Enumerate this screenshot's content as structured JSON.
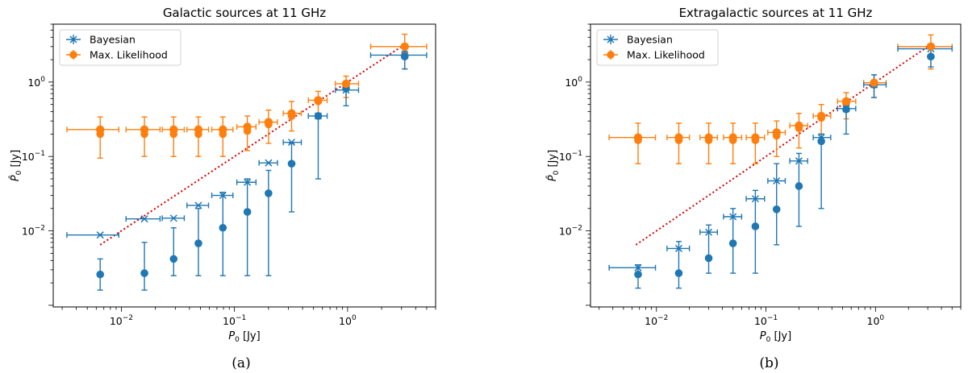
{
  "chart_data": [
    {
      "type": "scatter",
      "title": "Galactic sources at 11 GHz",
      "xlabel": "P0 [Jy]",
      "ylabel": "P̂0 [Jy]",
      "xscale": "log",
      "yscale": "log",
      "xlim": [
        0.0025,
        6
      ],
      "ylim": [
        0.00095,
        6
      ],
      "x_ticks": [
        {
          "value": 0.01,
          "base": "10",
          "exp": "−2"
        },
        {
          "value": 0.1,
          "base": "10",
          "exp": "−1"
        },
        {
          "value": 1,
          "base": "10",
          "exp": "0"
        }
      ],
      "y_ticks": [
        {
          "value": 0.01,
          "base": "10",
          "exp": "−2"
        },
        {
          "value": 0.1,
          "base": "10",
          "exp": "−1"
        },
        {
          "value": 1,
          "base": "10",
          "exp": "0"
        }
      ],
      "legend": {
        "position": "top-left",
        "entries": [
          "Bayesian",
          "Max. Likelihood"
        ]
      },
      "caption": "(a)",
      "reference_line": {
        "label": "identity",
        "x": [
          0.0065,
          3.2
        ],
        "y": [
          0.0065,
          3.2
        ],
        "color": "#dd0000"
      },
      "series": [
        {
          "name": "Bayesian",
          "marker": "x",
          "color": "#1f77b4",
          "x": [
            0.0065,
            0.016,
            0.029,
            0.048,
            0.079,
            0.13,
            0.2,
            0.32,
            0.55,
            0.97,
            3.2
          ],
          "y": [
            0.0088,
            0.0145,
            0.0148,
            0.022,
            0.03,
            0.045,
            0.082,
            0.155,
            0.35,
            0.78,
            2.3
          ],
          "xerr_low": [
            0.0033,
            0.011,
            0.023,
            0.038,
            0.063,
            0.105,
            0.165,
            0.27,
            0.45,
            0.78,
            1.6
          ],
          "xerr_high": [
            0.0095,
            0.022,
            0.036,
            0.059,
            0.097,
            0.155,
            0.24,
            0.39,
            0.66,
            1.25,
            5.0
          ]
        },
        {
          "name": "Bayesian (filled)",
          "marker": "o",
          "color": "#1f77b4",
          "x": [
            0.0065,
            0.016,
            0.029,
            0.048,
            0.079,
            0.13,
            0.2,
            0.32,
            0.55,
            0.97,
            3.2
          ],
          "y": [
            0.0026,
            0.0027,
            0.0042,
            0.0068,
            0.011,
            0.018,
            0.032,
            0.08,
            0.35,
            0.82,
            2.2
          ],
          "yerr_low": [
            0.0016,
            0.0016,
            0.0025,
            0.0025,
            0.0025,
            0.0025,
            0.0025,
            0.018,
            0.05,
            0.48,
            1.5
          ],
          "yerr_high": [
            0.0042,
            0.007,
            0.011,
            0.02,
            0.033,
            0.05,
            0.065,
            0.15,
            0.35,
            0.95,
            2.6
          ]
        },
        {
          "name": "Max. Likelihood",
          "marker": "o",
          "color": "#ff7f0e",
          "x": [
            0.0065,
            0.016,
            0.029,
            0.048,
            0.079,
            0.13,
            0.2,
            0.32,
            0.55,
            0.97,
            3.2
          ],
          "y": [
            0.23,
            0.23,
            0.23,
            0.23,
            0.23,
            0.25,
            0.29,
            0.38,
            0.57,
            0.95,
            3.0
          ],
          "y_secondary": [
            0.2,
            0.2,
            0.2,
            0.2,
            0.2,
            0.22,
            0.27,
            0.35,
            0.55,
            0.92,
            2.3
          ],
          "xerr_low": [
            0.0033,
            0.011,
            0.023,
            0.038,
            0.063,
            0.105,
            0.165,
            0.27,
            0.45,
            0.78,
            1.6
          ],
          "xerr_high": [
            0.0095,
            0.022,
            0.036,
            0.059,
            0.097,
            0.155,
            0.24,
            0.39,
            0.66,
            1.25,
            5.0
          ],
          "yerr_low": [
            0.095,
            0.1,
            0.1,
            0.1,
            0.1,
            0.12,
            0.15,
            0.22,
            0.35,
            0.62,
            1.5
          ],
          "yerr_high": [
            0.34,
            0.34,
            0.34,
            0.34,
            0.34,
            0.35,
            0.42,
            0.55,
            0.75,
            1.2,
            4.4
          ]
        }
      ]
    },
    {
      "type": "scatter",
      "title": "Extragalactic sources at 11 GHz",
      "xlabel": "P0 [Jy]",
      "ylabel": "P̂0 [Jy]",
      "xscale": "log",
      "yscale": "log",
      "xlim": [
        0.0025,
        6
      ],
      "ylim": [
        0.00095,
        6
      ],
      "x_ticks": [
        {
          "value": 0.01,
          "base": "10",
          "exp": "−2"
        },
        {
          "value": 0.1,
          "base": "10",
          "exp": "−1"
        },
        {
          "value": 1,
          "base": "10",
          "exp": "0"
        }
      ],
      "y_ticks": [
        {
          "value": 0.01,
          "base": "10",
          "exp": "−2"
        },
        {
          "value": 0.1,
          "base": "10",
          "exp": "−1"
        },
        {
          "value": 1,
          "base": "10",
          "exp": "0"
        }
      ],
      "legend": {
        "position": "top-left",
        "entries": [
          "Bayesian",
          "Max. Likelihood"
        ]
      },
      "caption": "(b)",
      "reference_line": {
        "label": "identity",
        "x": [
          0.0065,
          3.2
        ],
        "y": [
          0.0065,
          3.2
        ],
        "color": "#dd0000"
      },
      "series": [
        {
          "name": "Bayesian",
          "marker": "x",
          "color": "#1f77b4",
          "x": [
            0.0068,
            0.016,
            0.03,
            0.05,
            0.08,
            0.125,
            0.2,
            0.32,
            0.54,
            0.97,
            3.2
          ],
          "y": [
            0.0032,
            0.0058,
            0.0096,
            0.0155,
            0.027,
            0.047,
            0.087,
            0.18,
            0.44,
            0.92,
            2.8
          ],
          "xerr_low": [
            0.0037,
            0.0125,
            0.025,
            0.041,
            0.066,
            0.104,
            0.165,
            0.27,
            0.45,
            0.78,
            1.6
          ],
          "xerr_high": [
            0.0098,
            0.02,
            0.036,
            0.06,
            0.097,
            0.15,
            0.24,
            0.39,
            0.66,
            1.25,
            5.0
          ]
        },
        {
          "name": "Bayesian (filled)",
          "marker": "o",
          "color": "#1f77b4",
          "x": [
            0.0068,
            0.016,
            0.03,
            0.05,
            0.08,
            0.125,
            0.2,
            0.32,
            0.54,
            0.97,
            3.2
          ],
          "y": [
            0.0026,
            0.0027,
            0.0043,
            0.0068,
            0.0115,
            0.0195,
            0.04,
            0.16,
            0.43,
            0.92,
            2.2
          ],
          "yerr_low": [
            0.0017,
            0.0017,
            0.0027,
            0.0027,
            0.0027,
            0.0065,
            0.0115,
            0.02,
            0.2,
            0.62,
            1.6
          ],
          "yerr_high": [
            0.0035,
            0.0072,
            0.012,
            0.02,
            0.035,
            0.08,
            0.11,
            0.2,
            0.5,
            1.25,
            3.0
          ]
        },
        {
          "name": "Max. Likelihood",
          "marker": "o",
          "color": "#ff7f0e",
          "x": [
            0.0068,
            0.016,
            0.03,
            0.05,
            0.08,
            0.125,
            0.2,
            0.32,
            0.54,
            0.97,
            3.2
          ],
          "y": [
            0.18,
            0.18,
            0.18,
            0.18,
            0.18,
            0.21,
            0.26,
            0.35,
            0.55,
            0.98,
            3.0
          ],
          "y_secondary": [
            0.165,
            0.165,
            0.165,
            0.165,
            0.165,
            0.19,
            0.24,
            0.33,
            0.52,
            0.95,
            2.2
          ],
          "xerr_low": [
            0.0037,
            0.0125,
            0.025,
            0.041,
            0.066,
            0.104,
            0.165,
            0.27,
            0.45,
            0.78,
            1.6
          ],
          "xerr_high": [
            0.0098,
            0.02,
            0.036,
            0.06,
            0.097,
            0.15,
            0.24,
            0.39,
            0.66,
            1.25,
            5.0
          ],
          "yerr_low": [
            0.08,
            0.08,
            0.08,
            0.08,
            0.08,
            0.1,
            0.13,
            0.2,
            0.32,
            0.62,
            1.5
          ],
          "yerr_high": [
            0.28,
            0.28,
            0.28,
            0.28,
            0.28,
            0.3,
            0.38,
            0.5,
            0.72,
            1.25,
            4.3
          ]
        }
      ]
    }
  ]
}
